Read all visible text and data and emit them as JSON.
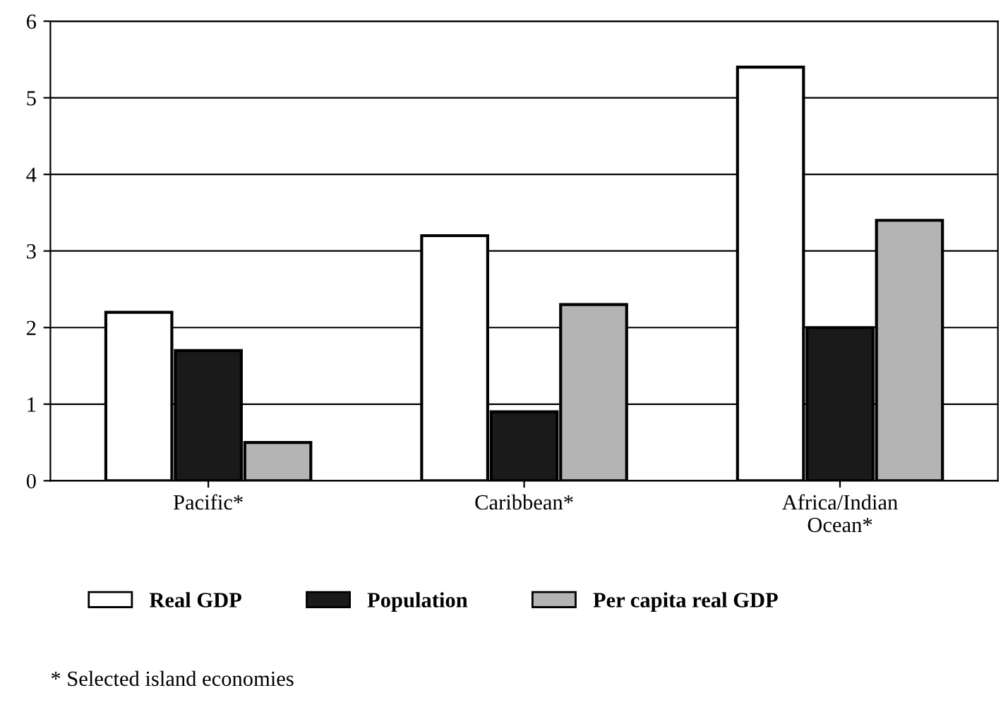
{
  "chart_data": {
    "type": "bar",
    "categories": [
      "Pacific*",
      "Caribbean*",
      "Africa/Indian\nOcean*"
    ],
    "series": [
      {
        "name": "Real GDP",
        "color": "#ffffff",
        "values": [
          2.2,
          3.2,
          5.4
        ]
      },
      {
        "name": "Population",
        "color": "#1a1a1a",
        "values": [
          1.7,
          0.9,
          2.0
        ]
      },
      {
        "name": "Per capita real GDP",
        "color": "#b4b4b4",
        "values": [
          0.5,
          2.3,
          3.4
        ]
      }
    ],
    "ylim": [
      0,
      6
    ],
    "yticks": [
      0,
      1,
      2,
      3,
      4,
      5,
      6
    ],
    "grid": "y",
    "legend": "bottom",
    "annotations": [
      "* Selected island economies"
    ]
  }
}
